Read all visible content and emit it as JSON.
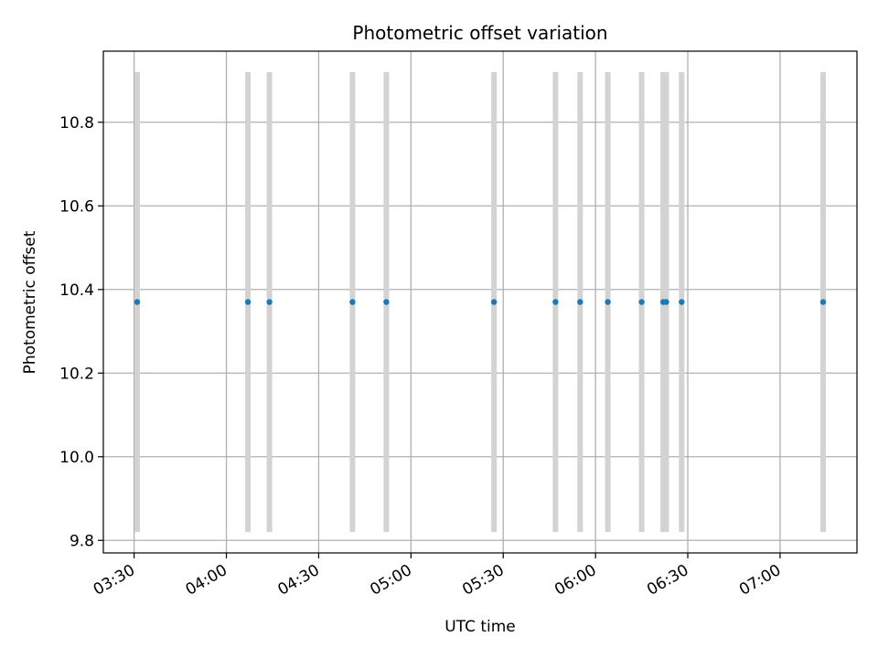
{
  "chart_data": {
    "type": "scatter",
    "title": "Photometric offset variation",
    "xlabel": "UTC time",
    "ylabel": "Photometric offset",
    "x_axis_kind": "time",
    "xlim": [
      "03:20",
      "07:25"
    ],
    "ylim": [
      9.77,
      10.97
    ],
    "x_ticks": [
      "03:30",
      "04:00",
      "04:30",
      "05:00",
      "05:30",
      "06:00",
      "06:30",
      "07:00"
    ],
    "y_ticks": [
      9.8,
      10.0,
      10.2,
      10.4,
      10.6,
      10.8
    ],
    "grid": true,
    "point_color": "#1f77b4",
    "band_color": "#d3d3d3",
    "band_range": [
      9.82,
      10.92
    ],
    "points": [
      {
        "x": "03:31",
        "y": 10.37
      },
      {
        "x": "04:07",
        "y": 10.37
      },
      {
        "x": "04:14",
        "y": 10.37
      },
      {
        "x": "04:41",
        "y": 10.37
      },
      {
        "x": "04:52",
        "y": 10.37
      },
      {
        "x": "05:27",
        "y": 10.37
      },
      {
        "x": "05:47",
        "y": 10.37
      },
      {
        "x": "05:55",
        "y": 10.37
      },
      {
        "x": "06:04",
        "y": 10.37
      },
      {
        "x": "06:15",
        "y": 10.37
      },
      {
        "x": "06:22",
        "y": 10.37
      },
      {
        "x": "06:23",
        "y": 10.37
      },
      {
        "x": "06:28",
        "y": 10.37
      },
      {
        "x": "07:14",
        "y": 10.37
      }
    ]
  }
}
